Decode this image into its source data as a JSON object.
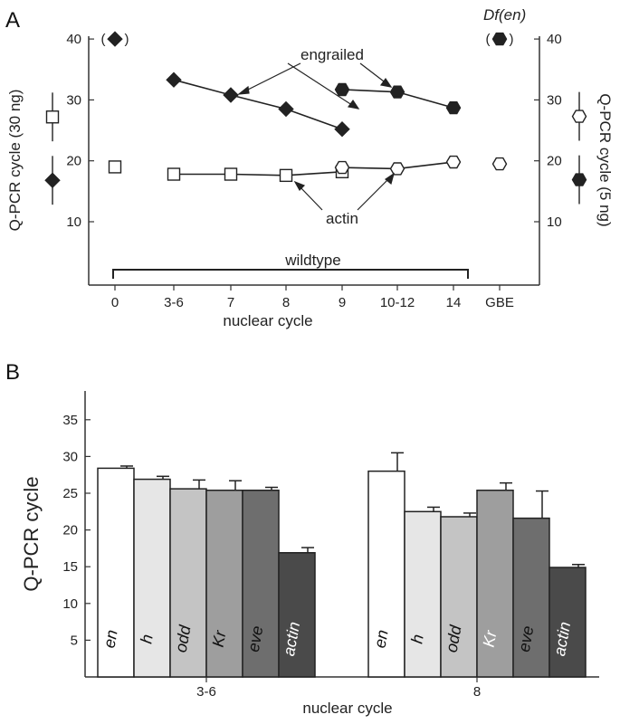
{
  "panels": {
    "a": "A",
    "b": "B"
  },
  "colors": {
    "axis": "#333333",
    "marker_dark": "#222222",
    "marker_light": "#ffffff"
  },
  "chart_data": [
    {
      "panel": "A",
      "type": "line",
      "categories": [
        "0",
        "3-6",
        "7",
        "8",
        "9",
        "10-12",
        "14",
        "GBE"
      ],
      "xlabel": "nuclear cycle",
      "ylabel_left": "Q-PCR cycle (30 ng)",
      "ylabel_right": "Q-PCR cycle (5 ng)",
      "ylim": [
        10,
        40
      ],
      "yticks": [
        "10",
        "20",
        "30",
        "40"
      ],
      "grid": false,
      "series": [
        {
          "name": "engrailed",
          "marker": "filled-diamond",
          "axis": "left",
          "x": [
            "0",
            "3-6",
            "7",
            "8",
            "9"
          ],
          "values": [
            40,
            33.3,
            30.8,
            28.5,
            25.2
          ],
          "connected_from": 1
        },
        {
          "name": "actin",
          "marker": "open-square",
          "axis": "left",
          "x": [
            "0",
            "3-6",
            "7",
            "8",
            "9"
          ],
          "values": [
            19,
            17.8,
            17.8,
            17.6,
            18.2
          ],
          "connected_from": 1
        },
        {
          "name": "engrailed",
          "marker": "filled-hexagon",
          "axis": "right",
          "x": [
            "9",
            "10-12",
            "14",
            "GBE"
          ],
          "values": [
            31.7,
            31.3,
            28.7,
            40
          ],
          "connected_to": 2
        },
        {
          "name": "actin",
          "marker": "open-hexagon",
          "axis": "right",
          "x": [
            "9",
            "10-12",
            "14",
            "GBE"
          ],
          "values": [
            18.9,
            18.7,
            19.8,
            19.5
          ],
          "connected_to": 2
        }
      ],
      "legend_left": {
        "open_square": {
          "value": 27.2,
          "error": 4
        },
        "filled_diamond": {
          "value": 16.8,
          "error": 4
        }
      },
      "legend_right": {
        "open_hexagon": {
          "value": 27.3,
          "error": 4
        },
        "filled_hexagon": {
          "value": 16.9,
          "error": 4
        }
      },
      "annotations": {
        "engrailed": "engrailed",
        "actin": "actin",
        "wildtype": "wildtype",
        "df_en": "Df(en)",
        "paren_open": "(",
        "paren_close": ")"
      }
    },
    {
      "panel": "B",
      "type": "bar",
      "categories": [
        "3-6",
        "8"
      ],
      "xlabel": "nuclear cycle",
      "ylabel": "Q-PCR cycle",
      "ylim": [
        0,
        40
      ],
      "yticks": [
        "5",
        "10",
        "15",
        "20",
        "25",
        "30",
        "35"
      ],
      "grid": false,
      "series": [
        {
          "name": "en",
          "values": [
            28.4,
            28.0
          ],
          "errors": [
            0.3,
            2.5
          ],
          "color": "#ffffff",
          "label_color": "#111111"
        },
        {
          "name": "h",
          "values": [
            26.9,
            22.5
          ],
          "errors": [
            0.4,
            0.6
          ],
          "color": "#e6e6e6",
          "label_color": "#111111"
        },
        {
          "name": "odd",
          "values": [
            25.6,
            21.8
          ],
          "errors": [
            1.2,
            0.5
          ],
          "color": "#c4c4c4",
          "label_color": "#111111"
        },
        {
          "name": "Kr",
          "values": [
            25.4,
            25.4
          ],
          "errors": [
            1.3,
            1.0
          ],
          "color": "#9e9e9e",
          "label_color_by_category": [
            "#111111",
            "#ffffff"
          ]
        },
        {
          "name": "eve",
          "values": [
            25.4,
            21.6
          ],
          "errors": [
            0.4,
            3.7
          ],
          "color": "#6e6e6e",
          "label_color": "#111111"
        },
        {
          "name": "actin",
          "values": [
            16.9,
            14.9
          ],
          "errors": [
            0.7,
            0.4
          ],
          "color": "#4a4a4a",
          "label_color": "#ffffff"
        }
      ]
    }
  ]
}
